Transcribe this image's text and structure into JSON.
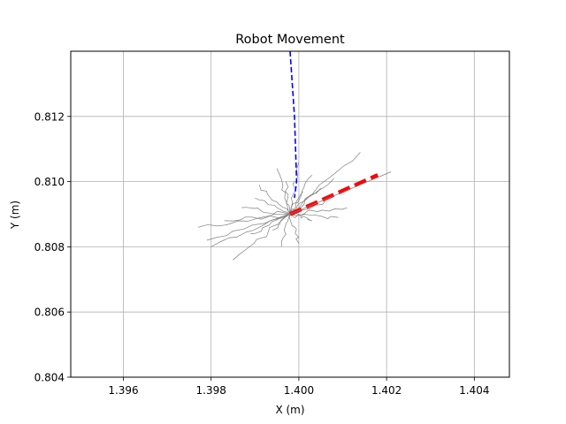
{
  "chart_data": {
    "type": "line",
    "title": "Robot Movement",
    "xlabel": "X (m)",
    "ylabel": "Y (m)",
    "xlim": [
      1.3948,
      1.4048
    ],
    "ylim": [
      0.804,
      0.814
    ],
    "xticks": [
      1.396,
      1.398,
      1.4,
      1.402,
      1.404
    ],
    "xtick_labels": [
      "1.396",
      "1.398",
      "1.400",
      "1.402",
      "1.404"
    ],
    "yticks": [
      0.804,
      0.806,
      0.808,
      0.81,
      0.812
    ],
    "ytick_labels": [
      "0.804",
      "0.806",
      "0.808",
      "0.810",
      "0.812"
    ],
    "grid": true,
    "legend": "none",
    "origin": [
      1.3998,
      0.809
    ],
    "series": [
      {
        "style": "dashed",
        "color": "#0000ff",
        "points": [
          [
            1.3998,
            0.814
          ],
          [
            1.3999,
            0.812
          ],
          [
            1.39995,
            0.81
          ],
          [
            1.3999,
            0.8095
          ]
        ]
      },
      {
        "style": "dashed",
        "color": "#ff0000",
        "points": [
          [
            1.3998,
            0.809
          ],
          [
            1.4008,
            0.8096
          ],
          [
            1.4018,
            0.8102
          ]
        ]
      },
      {
        "style": "solid",
        "color": "#808080",
        "name_on_chart": "",
        "points": [
          [
            1.3998,
            0.809
          ],
          [
            1.4021,
            0.8103
          ]
        ]
      }
    ],
    "trail_endpoints": [
      [
        1.398,
        0.808
      ],
      [
        1.3985,
        0.8076
      ],
      [
        1.3977,
        0.8086
      ],
      [
        1.399,
        0.8095
      ],
      [
        1.3995,
        0.8104
      ],
      [
        1.3991,
        0.8099
      ],
      [
        1.4,
        0.8106
      ],
      [
        1.4003,
        0.8102
      ],
      [
        1.4008,
        0.8101
      ],
      [
        1.4014,
        0.8109
      ],
      [
        1.4006,
        0.8094
      ],
      [
        1.4011,
        0.8092
      ],
      [
        1.4003,
        0.8088
      ],
      [
        1.4,
        0.8081
      ],
      [
        1.3996,
        0.808
      ],
      [
        1.3989,
        0.8084
      ],
      [
        1.3983,
        0.8088
      ],
      [
        1.3979,
        0.8082
      ],
      [
        1.3987,
        0.8092
      ],
      [
        1.4001,
        0.8097
      ],
      [
        1.3997,
        0.81
      ],
      [
        1.4005,
        0.8098
      ],
      [
        1.4009,
        0.8089
      ],
      [
        1.3994,
        0.8085
      ]
    ]
  }
}
